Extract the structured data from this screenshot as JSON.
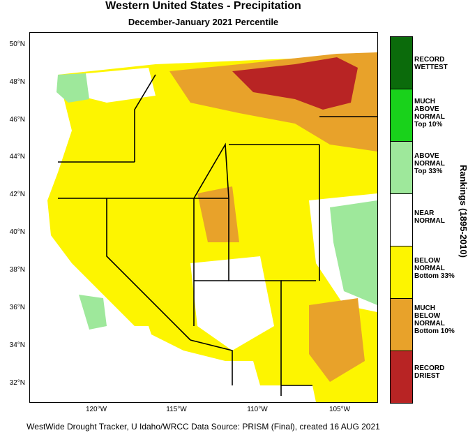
{
  "header": {
    "title": "Western United States - Precipitation",
    "subtitle": "December-January 2021 Percentile"
  },
  "axes": {
    "lat_labels": [
      "50°N",
      "48°N",
      "46°N",
      "44°N",
      "42°N",
      "40°N",
      "38°N",
      "36°N",
      "34°N",
      "32°N"
    ],
    "lon_labels": [
      "120°W",
      "115°W",
      "110°W",
      "105°W"
    ]
  },
  "legend": {
    "title": "Rankings (1895-2010)",
    "items": [
      {
        "label_lines": [
          "RECORD",
          "WETTEST"
        ],
        "color": "#0b6b0b"
      },
      {
        "label_lines": [
          "MUCH",
          "ABOVE",
          "NORMAL",
          "Top 10%"
        ],
        "color": "#19d21b"
      },
      {
        "label_lines": [
          "ABOVE",
          "NORMAL",
          "Top 33%"
        ],
        "color": "#9ee89b"
      },
      {
        "label_lines": [
          "NEAR",
          "NORMAL"
        ],
        "color": "#ffffff"
      },
      {
        "label_lines": [
          "BELOW",
          "NORMAL",
          "Bottom 33%"
        ],
        "color": "#fdf500"
      },
      {
        "label_lines": [
          "MUCH",
          "BELOW",
          "NORMAL",
          "Bottom 10%"
        ],
        "color": "#e8a22a"
      },
      {
        "label_lines": [
          "RECORD",
          "DRIEST"
        ],
        "color": "#b82424"
      }
    ]
  },
  "footer": {
    "text": "WestWide Drought Tracker, U Idaho/WRCC Data Source: PRISM (Final), created 16 AUG 2021"
  }
}
